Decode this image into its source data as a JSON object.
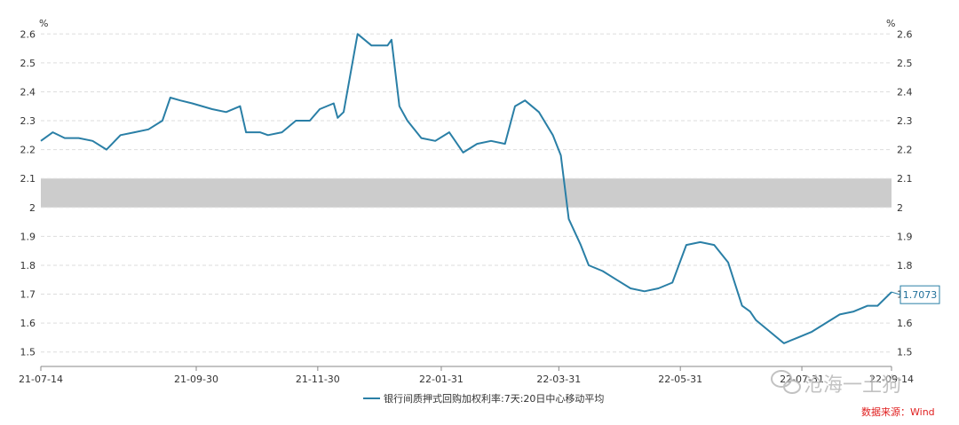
{
  "chart_data": {
    "type": "line",
    "y_unit": "%",
    "ylim": [
      1.45,
      2.65
    ],
    "yticks": [
      "2.6",
      "2.5",
      "2.4",
      "2.3",
      "2.2",
      "2.1",
      "2",
      "1.9",
      "1.8",
      "1.7",
      "1.6",
      "1.5"
    ],
    "xticks": [
      "21-07-14",
      "21-09-30",
      "21-11-30",
      "22-01-31",
      "22-03-31",
      "22-05-31",
      "22-07-31",
      "22-09-14"
    ],
    "grid": true,
    "band": {
      "from": 2.0,
      "to": 2.1,
      "color": "#cccccc"
    },
    "legend_position": "bottom",
    "series": [
      {
        "name": "银行间质押式回购加权利率:7天:20日中心移动平均",
        "color": "#2a7fa6",
        "x": [
          "2021-07-14",
          "2021-07-20",
          "2021-07-26",
          "2021-08-02",
          "2021-08-09",
          "2021-08-16",
          "2021-08-23",
          "2021-08-30",
          "2021-09-06",
          "2021-09-13",
          "2021-09-17",
          "2021-09-22",
          "2021-09-28",
          "2021-10-08",
          "2021-10-15",
          "2021-10-22",
          "2021-10-25",
          "2021-10-29",
          "2021-11-01",
          "2021-11-05",
          "2021-11-12",
          "2021-11-19",
          "2021-11-26",
          "2021-12-01",
          "2021-12-08",
          "2021-12-10",
          "2021-12-13",
          "2021-12-20",
          "2021-12-27",
          "2022-01-04",
          "2022-01-06",
          "2022-01-10",
          "2022-01-14",
          "2022-01-21",
          "2022-01-28",
          "2022-02-04",
          "2022-02-11",
          "2022-02-18",
          "2022-02-25",
          "2022-03-04",
          "2022-03-09",
          "2022-03-14",
          "2022-03-21",
          "2022-03-28",
          "2022-04-01",
          "2022-04-05",
          "2022-04-11",
          "2022-04-15",
          "2022-04-22",
          "2022-04-29",
          "2022-05-06",
          "2022-05-13",
          "2022-05-20",
          "2022-05-27",
          "2022-06-03",
          "2022-06-10",
          "2022-06-17",
          "2022-06-24",
          "2022-07-01",
          "2022-07-05",
          "2022-07-08",
          "2022-07-15",
          "2022-07-22",
          "2022-07-29",
          "2022-08-05",
          "2022-08-12",
          "2022-08-19",
          "2022-08-26",
          "2022-09-02",
          "2022-09-07",
          "2022-09-14"
        ],
        "values": [
          2.23,
          2.26,
          2.24,
          2.24,
          2.23,
          2.2,
          2.25,
          2.26,
          2.27,
          2.3,
          2.38,
          2.37,
          2.36,
          2.34,
          2.33,
          2.35,
          2.26,
          2.26,
          2.26,
          2.25,
          2.26,
          2.3,
          2.3,
          2.34,
          2.36,
          2.31,
          2.33,
          2.6,
          2.56,
          2.56,
          2.58,
          2.35,
          2.3,
          2.24,
          2.23,
          2.26,
          2.19,
          2.22,
          2.23,
          2.22,
          2.35,
          2.37,
          2.33,
          2.25,
          2.18,
          1.96,
          1.87,
          1.8,
          1.78,
          1.75,
          1.72,
          1.71,
          1.72,
          1.74,
          1.87,
          1.88,
          1.87,
          1.81,
          1.66,
          1.64,
          1.61,
          1.57,
          1.53,
          1.55,
          1.57,
          1.6,
          1.63,
          1.64,
          1.66,
          1.66,
          1.7073
        ]
      }
    ],
    "last_value_label": "1.7073"
  },
  "source_text": "数据来源：Wind",
  "watermark_text": "沧海一土狗",
  "colors": {
    "line": "#2a7fa6",
    "grid": "#dddddd",
    "band": "#cccccc",
    "source": "#e02020",
    "watermark": "#b8b8b8"
  }
}
